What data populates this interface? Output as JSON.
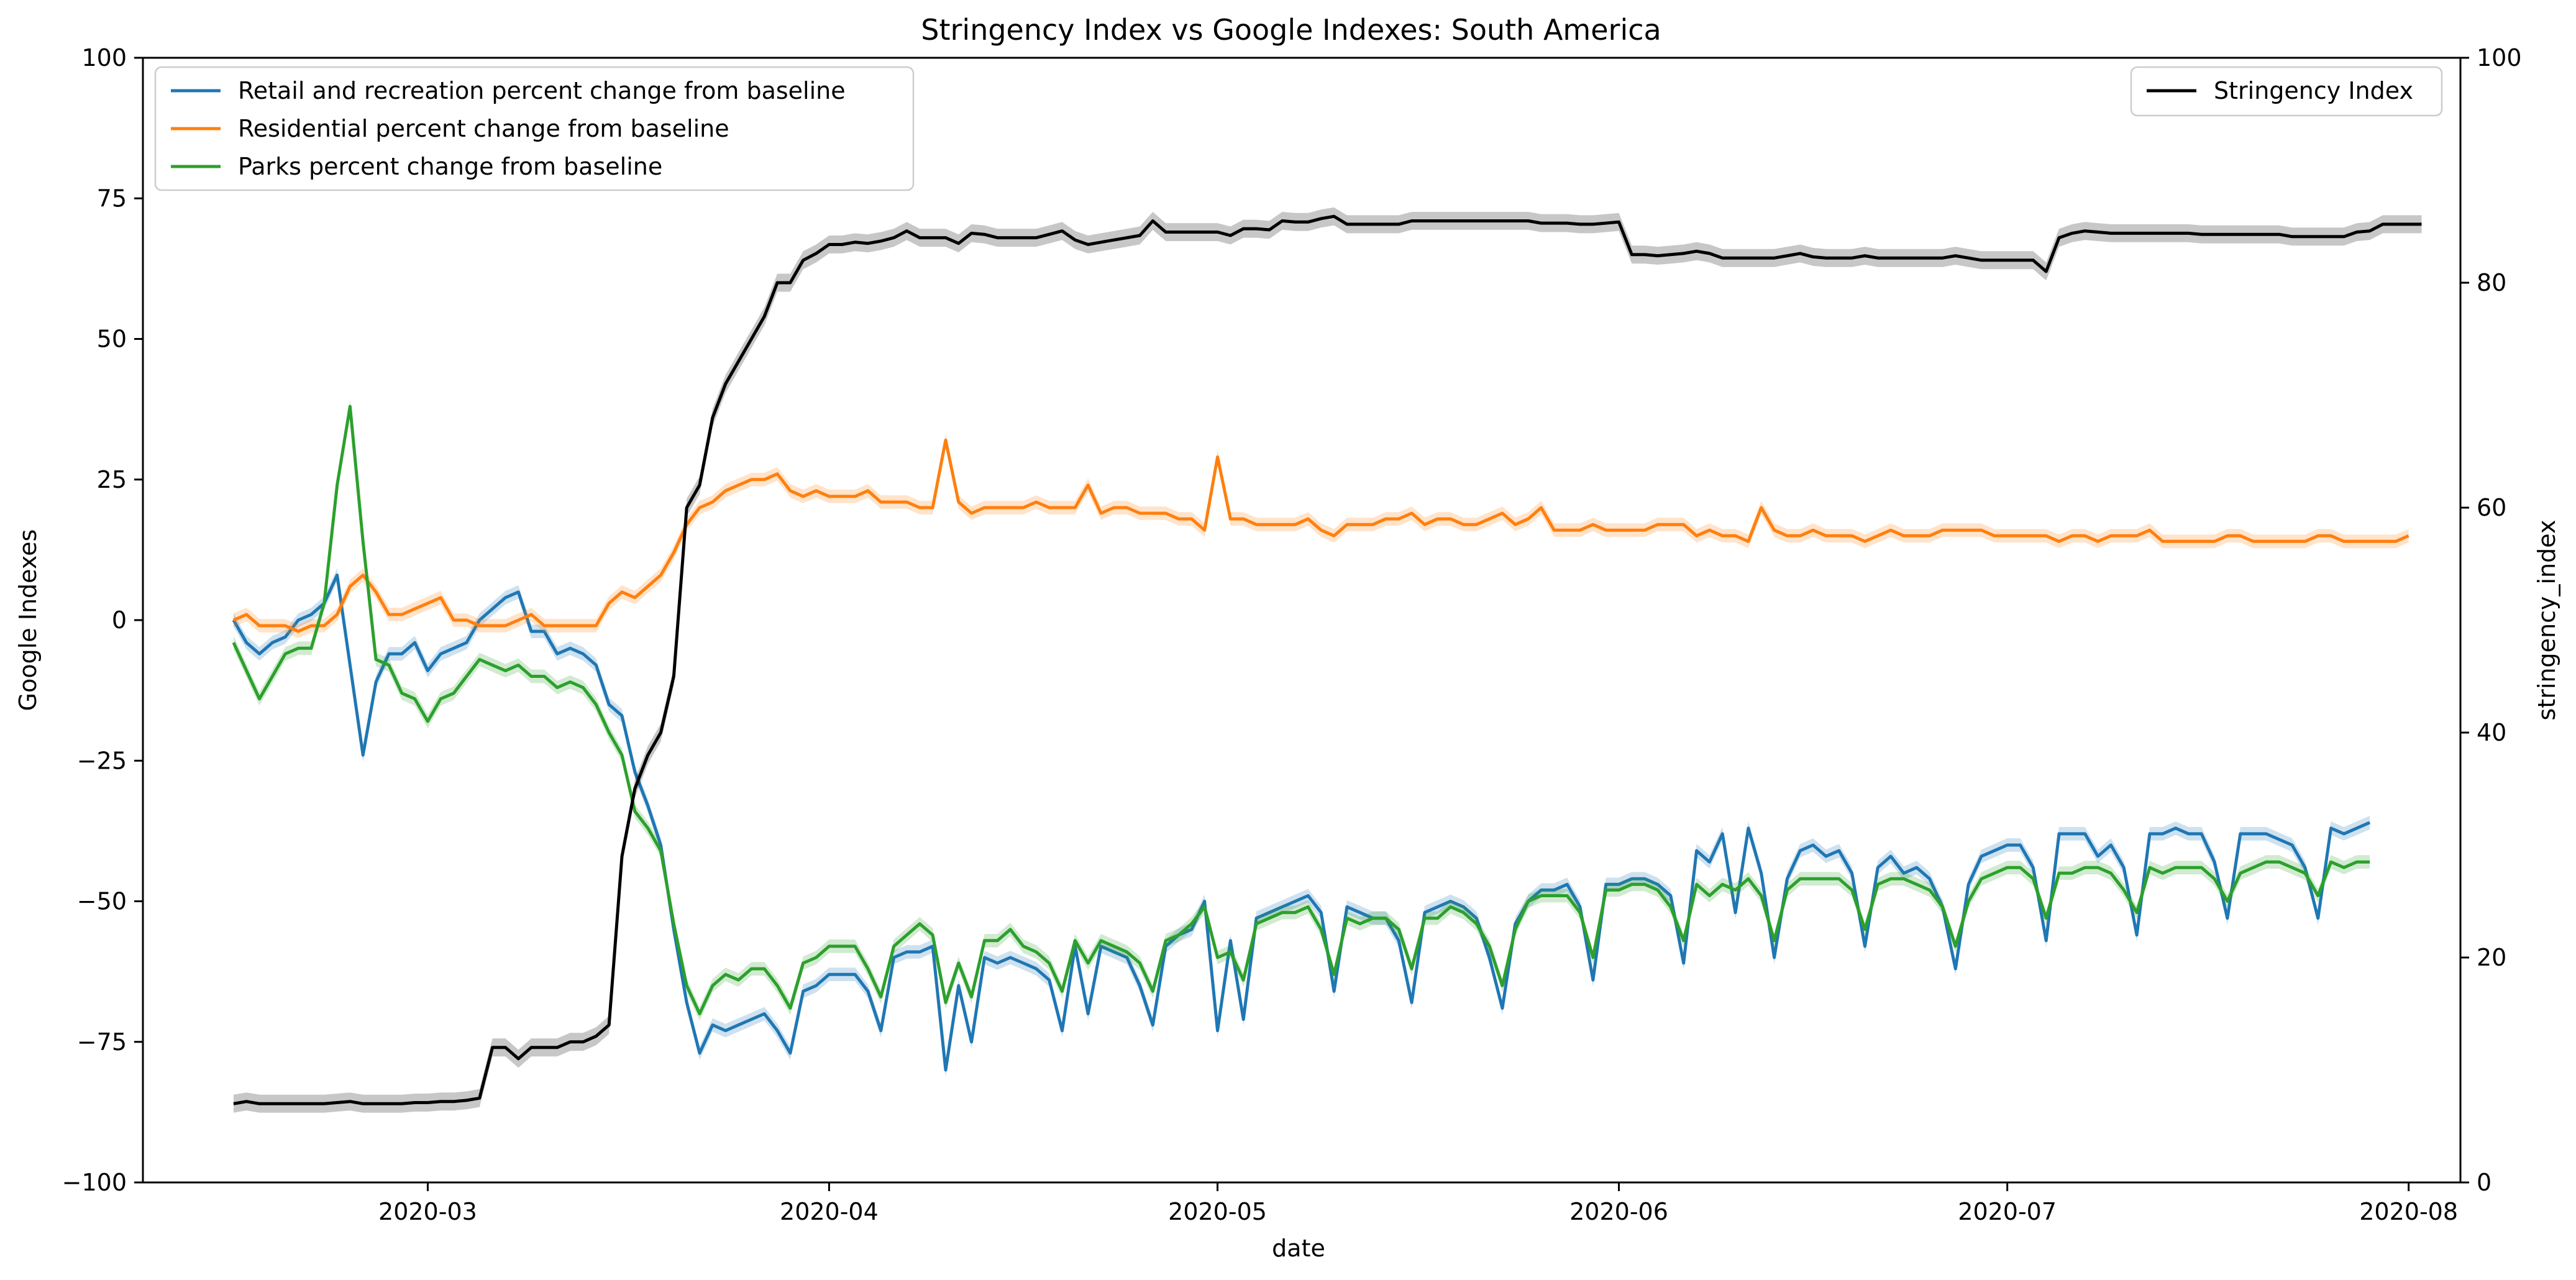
{
  "chart_data": {
    "type": "line",
    "title": "Stringency Index vs Google Indexes:  South America",
    "xlabel": "date",
    "ylabel_left": "Google Indexes",
    "ylabel_right": "stringency_index",
    "x_start": "2020-02-15",
    "x_tick_labels": [
      "2020-03",
      "2020-04",
      "2020-05",
      "2020-06",
      "2020-07",
      "2020-08"
    ],
    "x_tick_dates": [
      "2020-03-01",
      "2020-04-01",
      "2020-05-01",
      "2020-06-01",
      "2020-07-01",
      "2020-08-01"
    ],
    "x_range": [
      "2020-02-08",
      "2020-08-05"
    ],
    "ylim_left": [
      -100,
      100
    ],
    "yticks_left": [
      -100,
      -75,
      -50,
      -25,
      0,
      25,
      50,
      75,
      100
    ],
    "ylim_right": [
      0,
      100
    ],
    "yticks_right": [
      0,
      20,
      40,
      60,
      80,
      100
    ],
    "grid": false,
    "legend_left_position": "upper-left",
    "legend_right_position": "upper-right",
    "series": [
      {
        "name": "Retail and recreation percent change from baseline",
        "axis": "left",
        "color": "#1f77b4",
        "values": [
          0,
          -4,
          -6,
          -4,
          -3,
          0,
          1,
          3,
          8,
          -8,
          -24,
          -11,
          -6,
          -6,
          -4,
          -9,
          -6,
          -5,
          -4,
          0,
          2,
          4,
          5,
          -2,
          -2,
          -6,
          -5,
          -6,
          -8,
          -15,
          -17,
          -27,
          -33,
          -40,
          -55,
          -68,
          -77,
          -72,
          -73,
          -72,
          -71,
          -70,
          -73,
          -77,
          -66,
          -65,
          -63,
          -63,
          -63,
          -66,
          -73,
          -60,
          -59,
          -59,
          -58,
          -80,
          -65,
          -75,
          -60,
          -61,
          -60,
          -61,
          -62,
          -64,
          -73,
          -58,
          -70,
          -58,
          -59,
          -60,
          -65,
          -72,
          -58,
          -56,
          -55,
          -50,
          -73,
          -57,
          -71,
          -53,
          -52,
          -51,
          -50,
          -49,
          -52,
          -66,
          -51,
          -52,
          -53,
          -53,
          -57,
          -68,
          -52,
          -51,
          -50,
          -51,
          -53,
          -60,
          -69,
          -54,
          -50,
          -48,
          -48,
          -47,
          -51,
          -64,
          -47,
          -47,
          -46,
          -46,
          -47,
          -49,
          -61,
          -41,
          -43,
          -38,
          -52,
          -37,
          -45,
          -60,
          -46,
          -41,
          -40,
          -42,
          -41,
          -45,
          -58,
          -44,
          -42,
          -45,
          -44,
          -46,
          -51,
          -62,
          -47,
          -42,
          -41,
          -40,
          -40,
          -44,
          -57,
          -38,
          -38,
          -38,
          -42,
          -40,
          -44,
          -56,
          -38,
          -38,
          -37,
          -38,
          -38,
          -43,
          -53,
          -38,
          -38,
          -38,
          -39,
          -40,
          -44,
          -53,
          -37,
          -38,
          -37,
          -36
        ]
      },
      {
        "name": "Residential percent change from baseline",
        "axis": "left",
        "color": "#ff7f0e",
        "values": [
          0,
          1,
          -1,
          -1,
          -1,
          -2,
          -1,
          -1,
          1,
          6,
          8,
          5,
          1,
          1,
          2,
          3,
          4,
          0,
          0,
          -1,
          -1,
          -1,
          0,
          1,
          -1,
          -1,
          -1,
          -1,
          -1,
          3,
          5,
          4,
          6,
          8,
          12,
          17,
          20,
          21,
          23,
          24,
          25,
          25,
          26,
          23,
          22,
          23,
          22,
          22,
          22,
          23,
          21,
          21,
          21,
          20,
          20,
          32,
          21,
          19,
          20,
          20,
          20,
          20,
          21,
          20,
          20,
          20,
          24,
          19,
          20,
          20,
          19,
          19,
          19,
          18,
          18,
          16,
          29,
          18,
          18,
          17,
          17,
          17,
          17,
          18,
          16,
          15,
          17,
          17,
          17,
          18,
          18,
          19,
          17,
          18,
          18,
          17,
          17,
          18,
          19,
          17,
          18,
          20,
          16,
          16,
          16,
          17,
          16,
          16,
          16,
          16,
          17,
          17,
          17,
          15,
          16,
          15,
          15,
          14,
          20,
          16,
          15,
          15,
          16,
          15,
          15,
          15,
          14,
          15,
          16,
          15,
          15,
          15,
          16,
          16,
          16,
          16,
          15,
          15,
          15,
          15,
          15,
          14,
          15,
          15,
          14,
          15,
          15,
          15,
          16,
          14,
          14,
          14,
          14,
          14,
          15,
          15,
          14,
          14,
          14,
          14,
          14,
          15,
          15,
          14,
          14,
          14,
          14,
          14,
          15
        ]
      },
      {
        "name": "Parks percent change from baseline",
        "axis": "left",
        "color": "#2ca02c",
        "values": [
          -4,
          -9,
          -14,
          -10,
          -6,
          -5,
          -5,
          3,
          24,
          38,
          14,
          -7,
          -8,
          -13,
          -14,
          -18,
          -14,
          -13,
          -10,
          -7,
          -8,
          -9,
          -8,
          -10,
          -10,
          -12,
          -11,
          -12,
          -15,
          -20,
          -24,
          -34,
          -37,
          -41,
          -54,
          -65,
          -70,
          -65,
          -63,
          -64,
          -62,
          -62,
          -65,
          -69,
          -61,
          -60,
          -58,
          -58,
          -58,
          -62,
          -67,
          -58,
          -56,
          -54,
          -56,
          -68,
          -61,
          -67,
          -57,
          -57,
          -55,
          -58,
          -59,
          -61,
          -66,
          -57,
          -61,
          -57,
          -58,
          -59,
          -61,
          -66,
          -57,
          -56,
          -54,
          -51,
          -60,
          -59,
          -64,
          -54,
          -53,
          -52,
          -52,
          -51,
          -55,
          -63,
          -53,
          -54,
          -53,
          -53,
          -55,
          -62,
          -53,
          -53,
          -51,
          -52,
          -54,
          -58,
          -65,
          -55,
          -50,
          -49,
          -49,
          -49,
          -52,
          -60,
          -48,
          -48,
          -47,
          -47,
          -48,
          -51,
          -57,
          -47,
          -49,
          -47,
          -48,
          -46,
          -49,
          -57,
          -48,
          -46,
          -46,
          -46,
          -46,
          -48,
          -55,
          -47,
          -46,
          -46,
          -47,
          -48,
          -51,
          -58,
          -50,
          -46,
          -45,
          -44,
          -44,
          -46,
          -53,
          -45,
          -45,
          -44,
          -44,
          -45,
          -48,
          -52,
          -44,
          -45,
          -44,
          -44,
          -44,
          -46,
          -50,
          -45,
          -44,
          -43,
          -43,
          -44,
          -45,
          -49,
          -43,
          -44,
          -43,
          -43
        ]
      },
      {
        "name": "Stringency Index",
        "axis": "right",
        "color": "#000000",
        "values": [
          7,
          7.2,
          7,
          7,
          7,
          7,
          7,
          7,
          7.1,
          7.2,
          7,
          7,
          7,
          7,
          7.1,
          7.1,
          7.2,
          7.2,
          7.3,
          7.5,
          12,
          12,
          11,
          12,
          12,
          12,
          12.5,
          12.5,
          13,
          14,
          29,
          35,
          38,
          40,
          45,
          60,
          62,
          68,
          71,
          73,
          75,
          77,
          80,
          80,
          82,
          82.6,
          83.4,
          83.4,
          83.6,
          83.5,
          83.7,
          84,
          84.6,
          84,
          84,
          84,
          83.5,
          84.4,
          84.3,
          84,
          84,
          84,
          84,
          84.3,
          84.6,
          83.8,
          83.4,
          83.6,
          83.8,
          84,
          84.2,
          85.5,
          84.5,
          84.5,
          84.5,
          84.5,
          84.5,
          84.2,
          84.8,
          84.8,
          84.7,
          85.5,
          85.4,
          85.4,
          85.7,
          85.9,
          85.2,
          85.2,
          85.2,
          85.2,
          85.2,
          85.5,
          85.5,
          85.5,
          85.5,
          85.5,
          85.5,
          85.5,
          85.5,
          85.5,
          85.5,
          85.3,
          85.3,
          85.3,
          85.2,
          85.2,
          85.3,
          85.4,
          82.5,
          82.5,
          82.4,
          82.5,
          82.6,
          82.8,
          82.6,
          82.2,
          82.2,
          82.2,
          82.2,
          82.2,
          82.4,
          82.6,
          82.3,
          82.2,
          82.2,
          82.2,
          82.4,
          82.2,
          82.2,
          82.2,
          82.2,
          82.2,
          82.2,
          82.4,
          82.2,
          82,
          82,
          82,
          82,
          82,
          81,
          84,
          84.4,
          84.6,
          84.5,
          84.4,
          84.4,
          84.4,
          84.4,
          84.4,
          84.4,
          84.4,
          84.3,
          84.3,
          84.3,
          84.3,
          84.3,
          84.3,
          84.3,
          84.1,
          84.1,
          84.1,
          84.1,
          84.1,
          84.5,
          84.6,
          85.2,
          85.2,
          85.2,
          85.2
        ]
      }
    ]
  }
}
